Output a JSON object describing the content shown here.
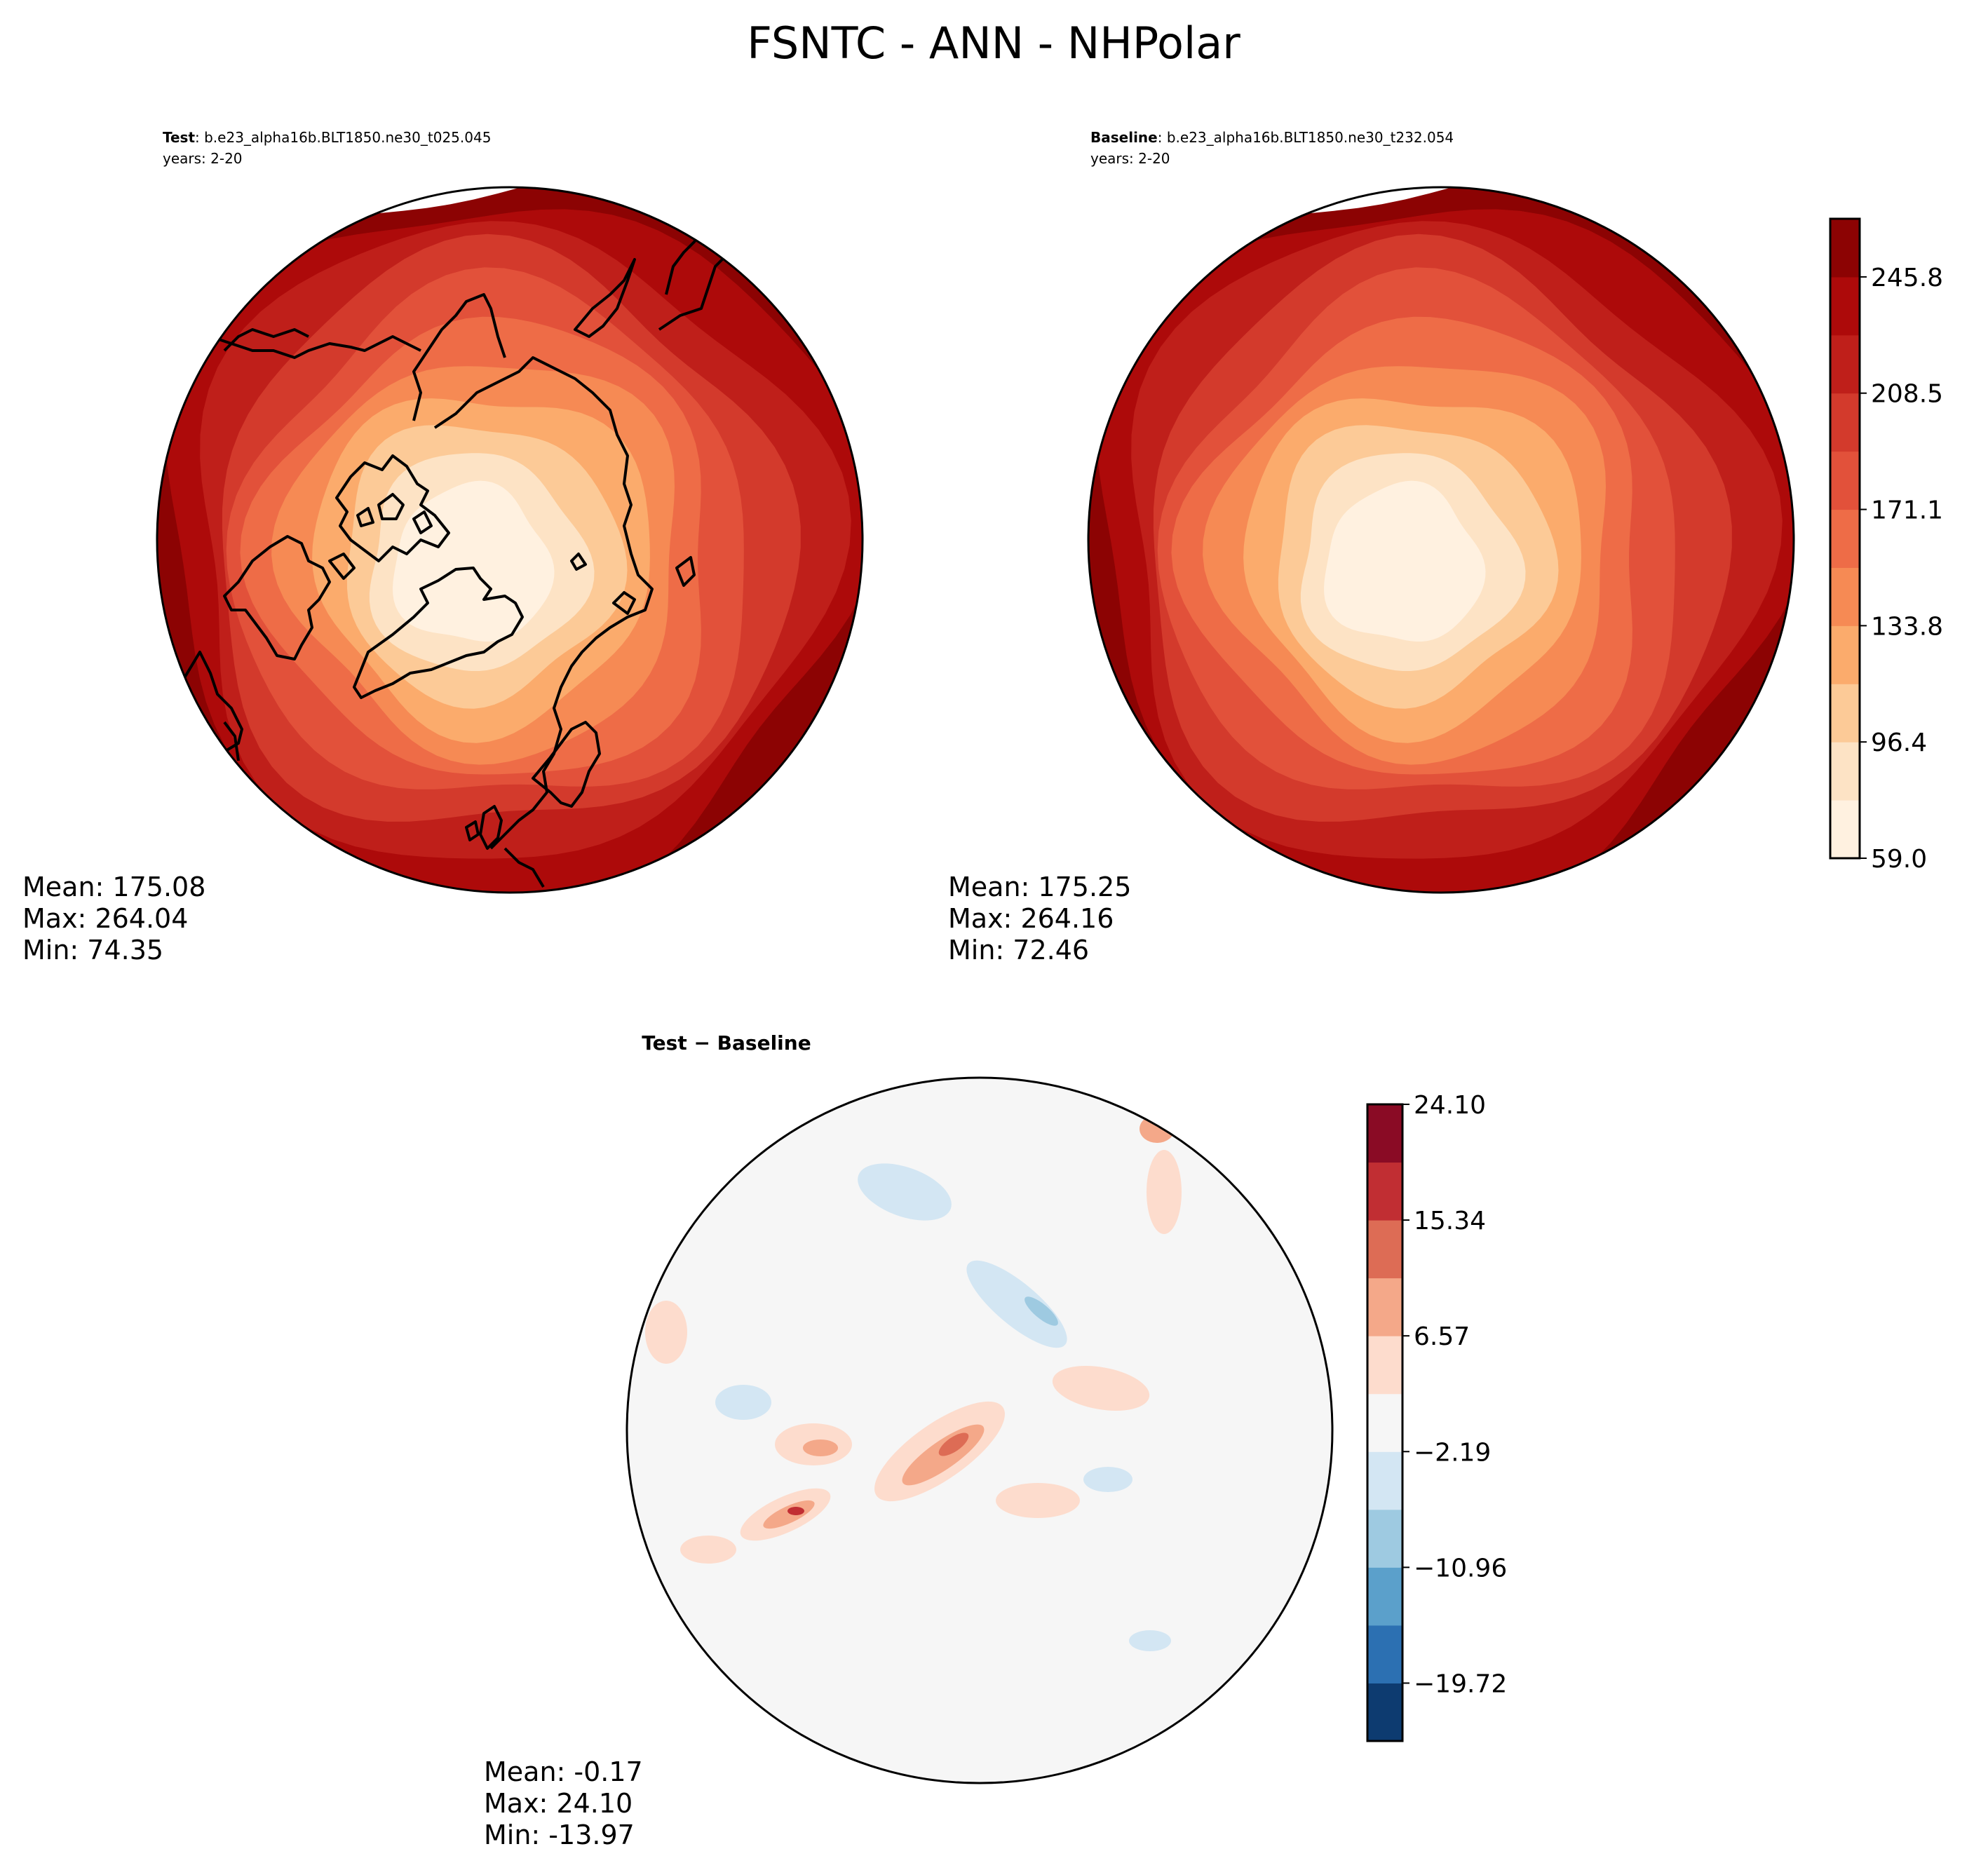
{
  "figure": {
    "title": "FSNTC - ANN - NHPolar"
  },
  "panels": [
    {
      "id": "test",
      "label": "Test",
      "case": ": b.e23_alpha16b.BLT1850.ne30_t025.045",
      "years": "years: 2-20",
      "stats": {
        "mean": "Mean: 175.08",
        "max": "Max: 264.04",
        "min": "Min: 74.35"
      }
    },
    {
      "id": "baseline",
      "label": "Baseline",
      "case": ": b.e23_alpha16b.BLT1850.ne30_t232.054",
      "years": "years: 2-20",
      "stats": {
        "mean": "Mean: 175.25",
        "max": "Max: 264.16",
        "min": "Min: 72.46"
      }
    },
    {
      "id": "diff",
      "label": "Test − Baseline",
      "stats": {
        "mean": "Mean: -0.17",
        "max": "Max: 24.10",
        "min": "Min: -13.97"
      }
    }
  ],
  "colorbars": {
    "main": {
      "ticks": [
        "59.0",
        "96.4",
        "133.8",
        "171.1",
        "208.5",
        "245.8"
      ],
      "colors": [
        "#fff5eb",
        "#fee6ce",
        "#fdd0a2",
        "#fdae6b",
        "#fd8d3c",
        "#f16913",
        "#e6552d",
        "#d94801",
        "#c9251c",
        "#b00b0b",
        "#8b0000"
      ],
      "field_colors": [
        "#fff1e0",
        "#fde3c5",
        "#fcca97",
        "#fbab6c",
        "#f68a54",
        "#ee6c47",
        "#e2513a",
        "#d33a2c",
        "#bf1f1a",
        "#ad0a0a",
        "#8c0303"
      ]
    },
    "diff": {
      "ticks": [
        "24.10",
        "15.34",
        "6.57",
        "−2.19",
        "−10.96",
        "−19.72"
      ],
      "colors": [
        "#f7f7f7",
        "#d1e5f0",
        "#92c5de",
        "#4393c3",
        "#2166ac",
        "#053061",
        "#fddbc7",
        "#f4a582",
        "#d6604d",
        "#b2182b",
        "#67001f"
      ],
      "bands": [
        "#0d3b70",
        "#2c70b2",
        "#5ba0cb",
        "#9ecae1",
        "#d3e6f3",
        "#f6f6f6",
        "#fddccd",
        "#f4a889",
        "#dd6c55",
        "#c12e33",
        "#8a0b25"
      ]
    }
  }
}
